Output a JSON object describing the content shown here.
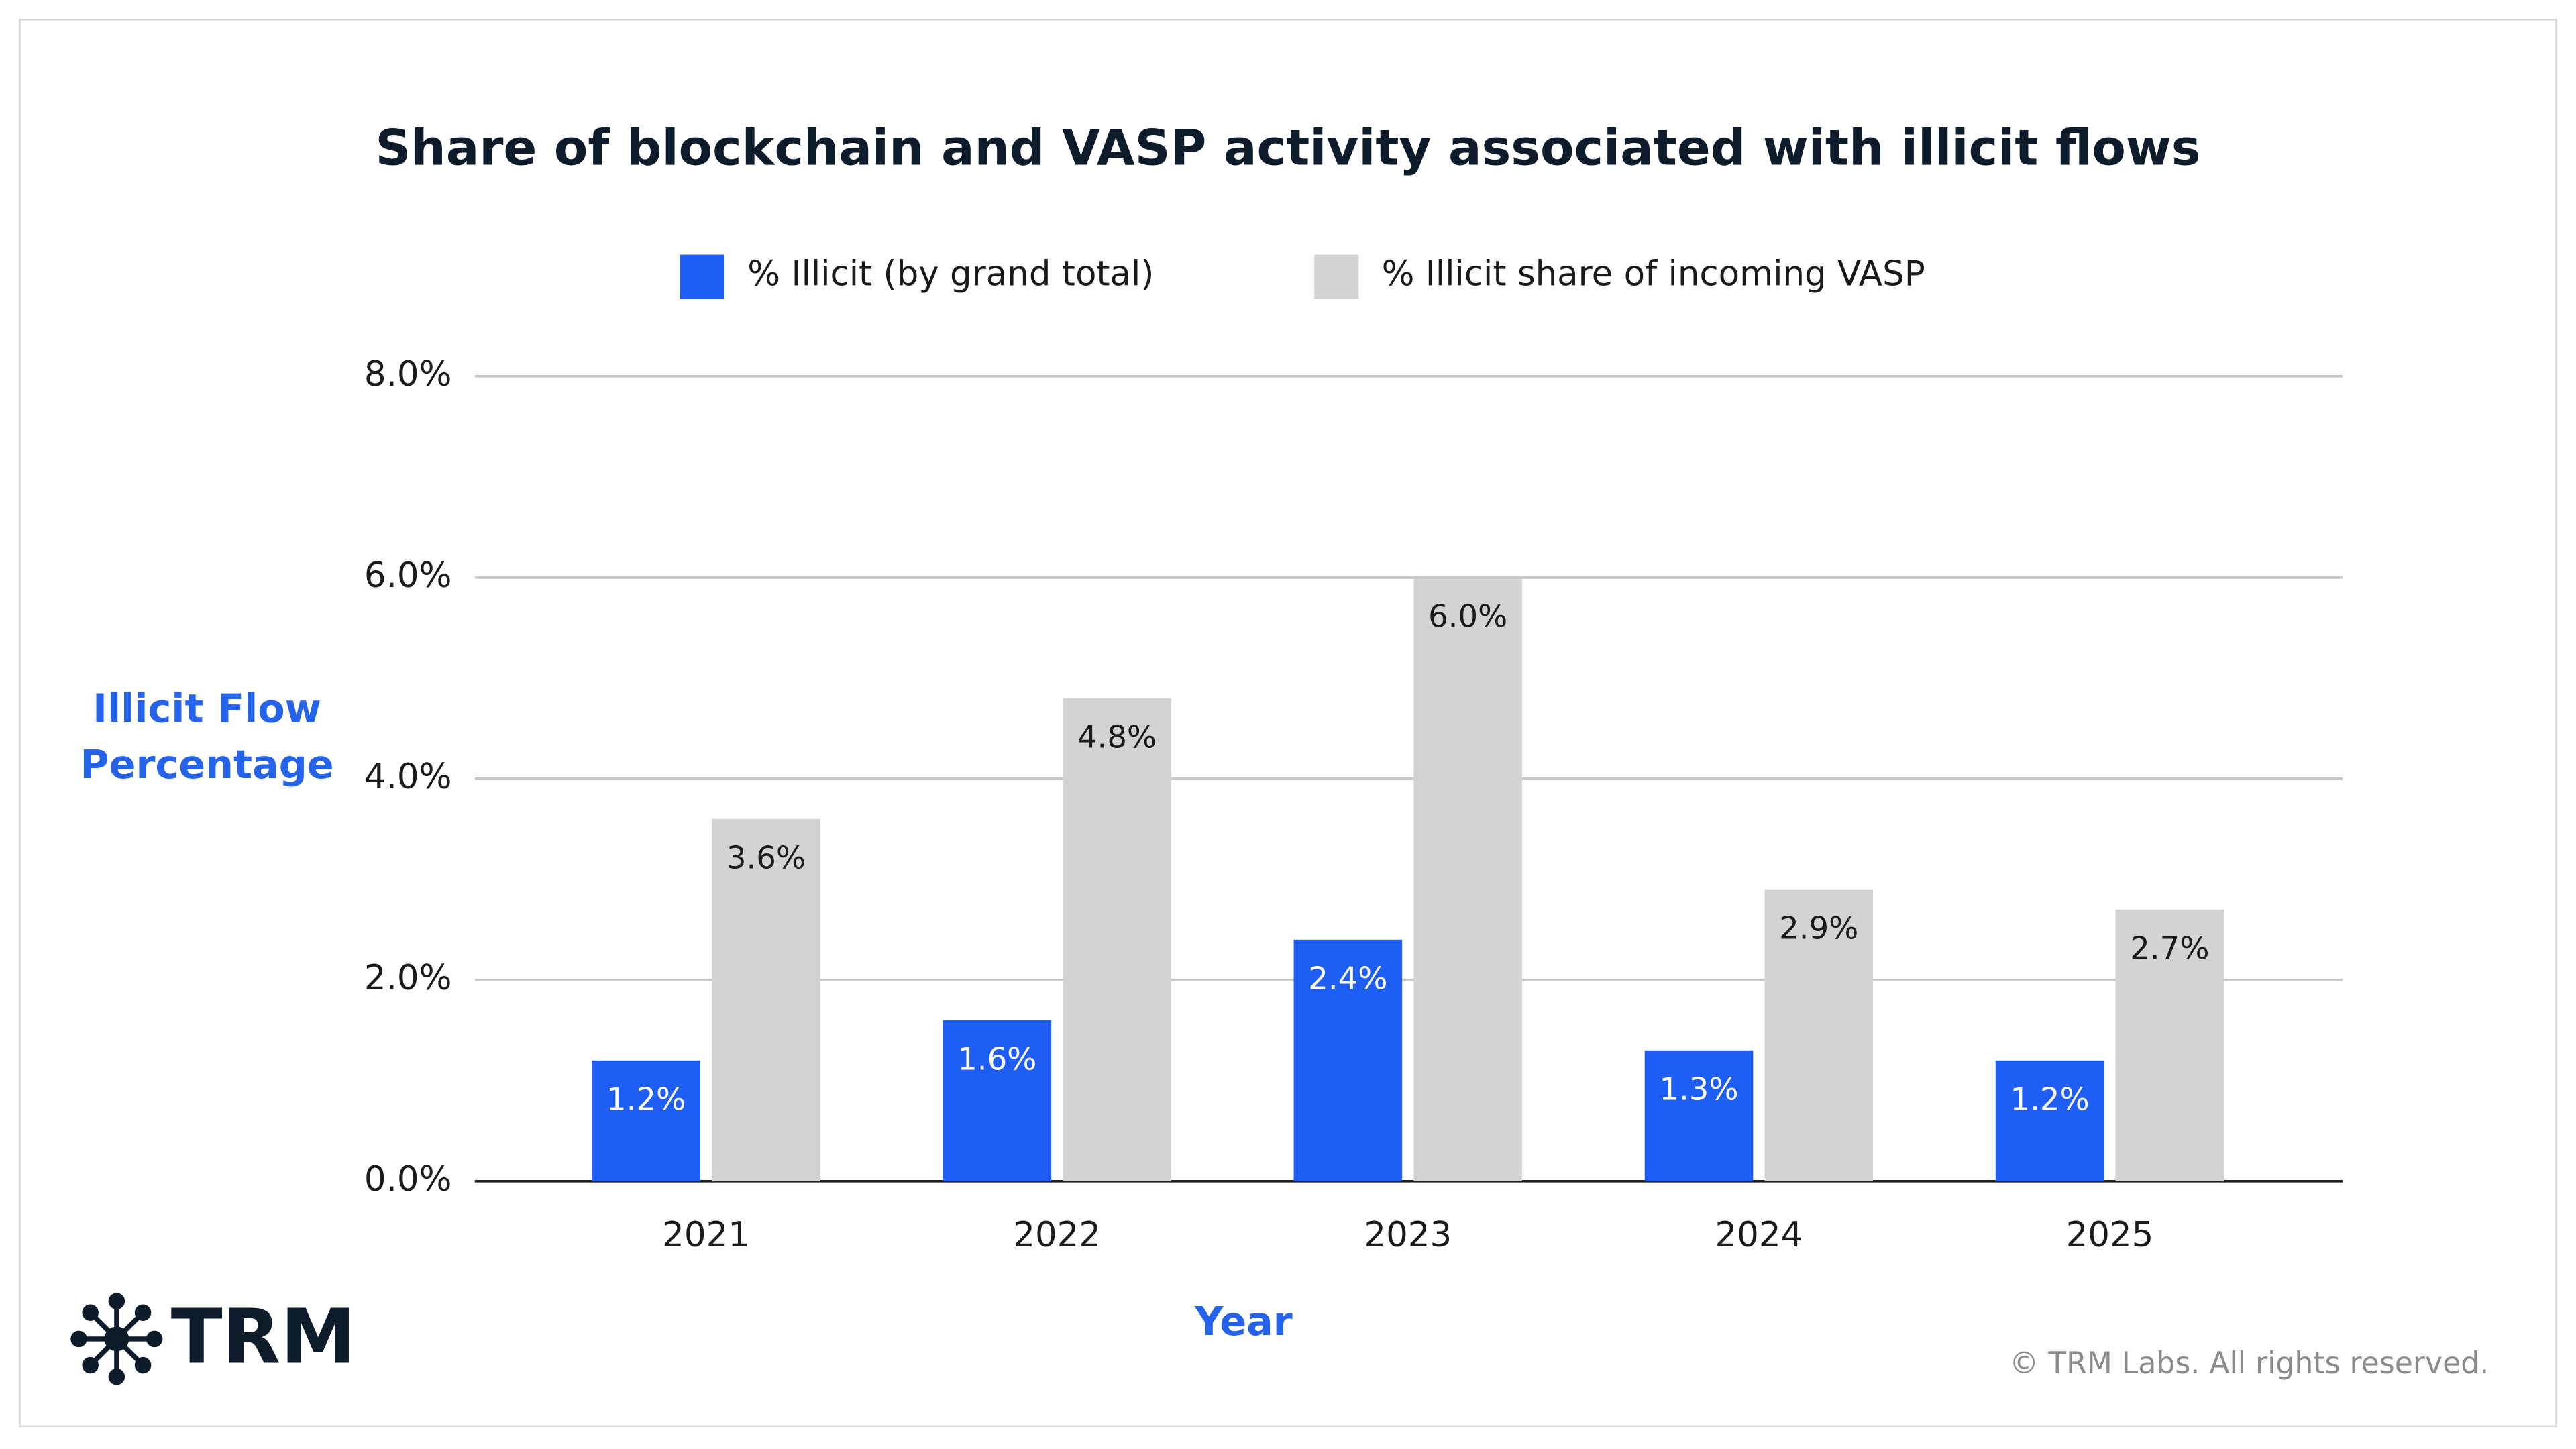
{
  "chart_data": {
    "type": "bar",
    "title": "Share of blockchain and VASP activity associated with illicit flows",
    "xlabel": "Year",
    "ylabel": [
      "Illicit Flow",
      "Percentage"
    ],
    "categories": [
      "2021",
      "2022",
      "2023",
      "2024",
      "2025"
    ],
    "series": [
      {
        "name": "% Illicit (by grand total)",
        "color": "#1f5ef5",
        "values": [
          1.2,
          1.6,
          2.4,
          1.3,
          1.2
        ],
        "value_labels": [
          "1.2%",
          "1.6%",
          "2.4%",
          "1.3%",
          "1.2%"
        ]
      },
      {
        "name": "% Illicit share of incoming VASP",
        "color": "#d3d3d3",
        "values": [
          3.6,
          4.8,
          6.0,
          2.9,
          2.7
        ],
        "value_labels": [
          "3.6%",
          "4.8%",
          "6.0%",
          "2.9%",
          "2.7%"
        ]
      }
    ],
    "ylim": [
      0,
      8
    ],
    "yticks": [
      {
        "value": 0,
        "label": "0.0%"
      },
      {
        "value": 2,
        "label": "2.0%"
      },
      {
        "value": 4,
        "label": "4.0%"
      },
      {
        "value": 6,
        "label": "6.0%"
      },
      {
        "value": 8,
        "label": "8.0%"
      }
    ],
    "grid": true,
    "legend": "top",
    "logo_text": "TRM",
    "source": "© TRM Labs. All rights reserved."
  }
}
